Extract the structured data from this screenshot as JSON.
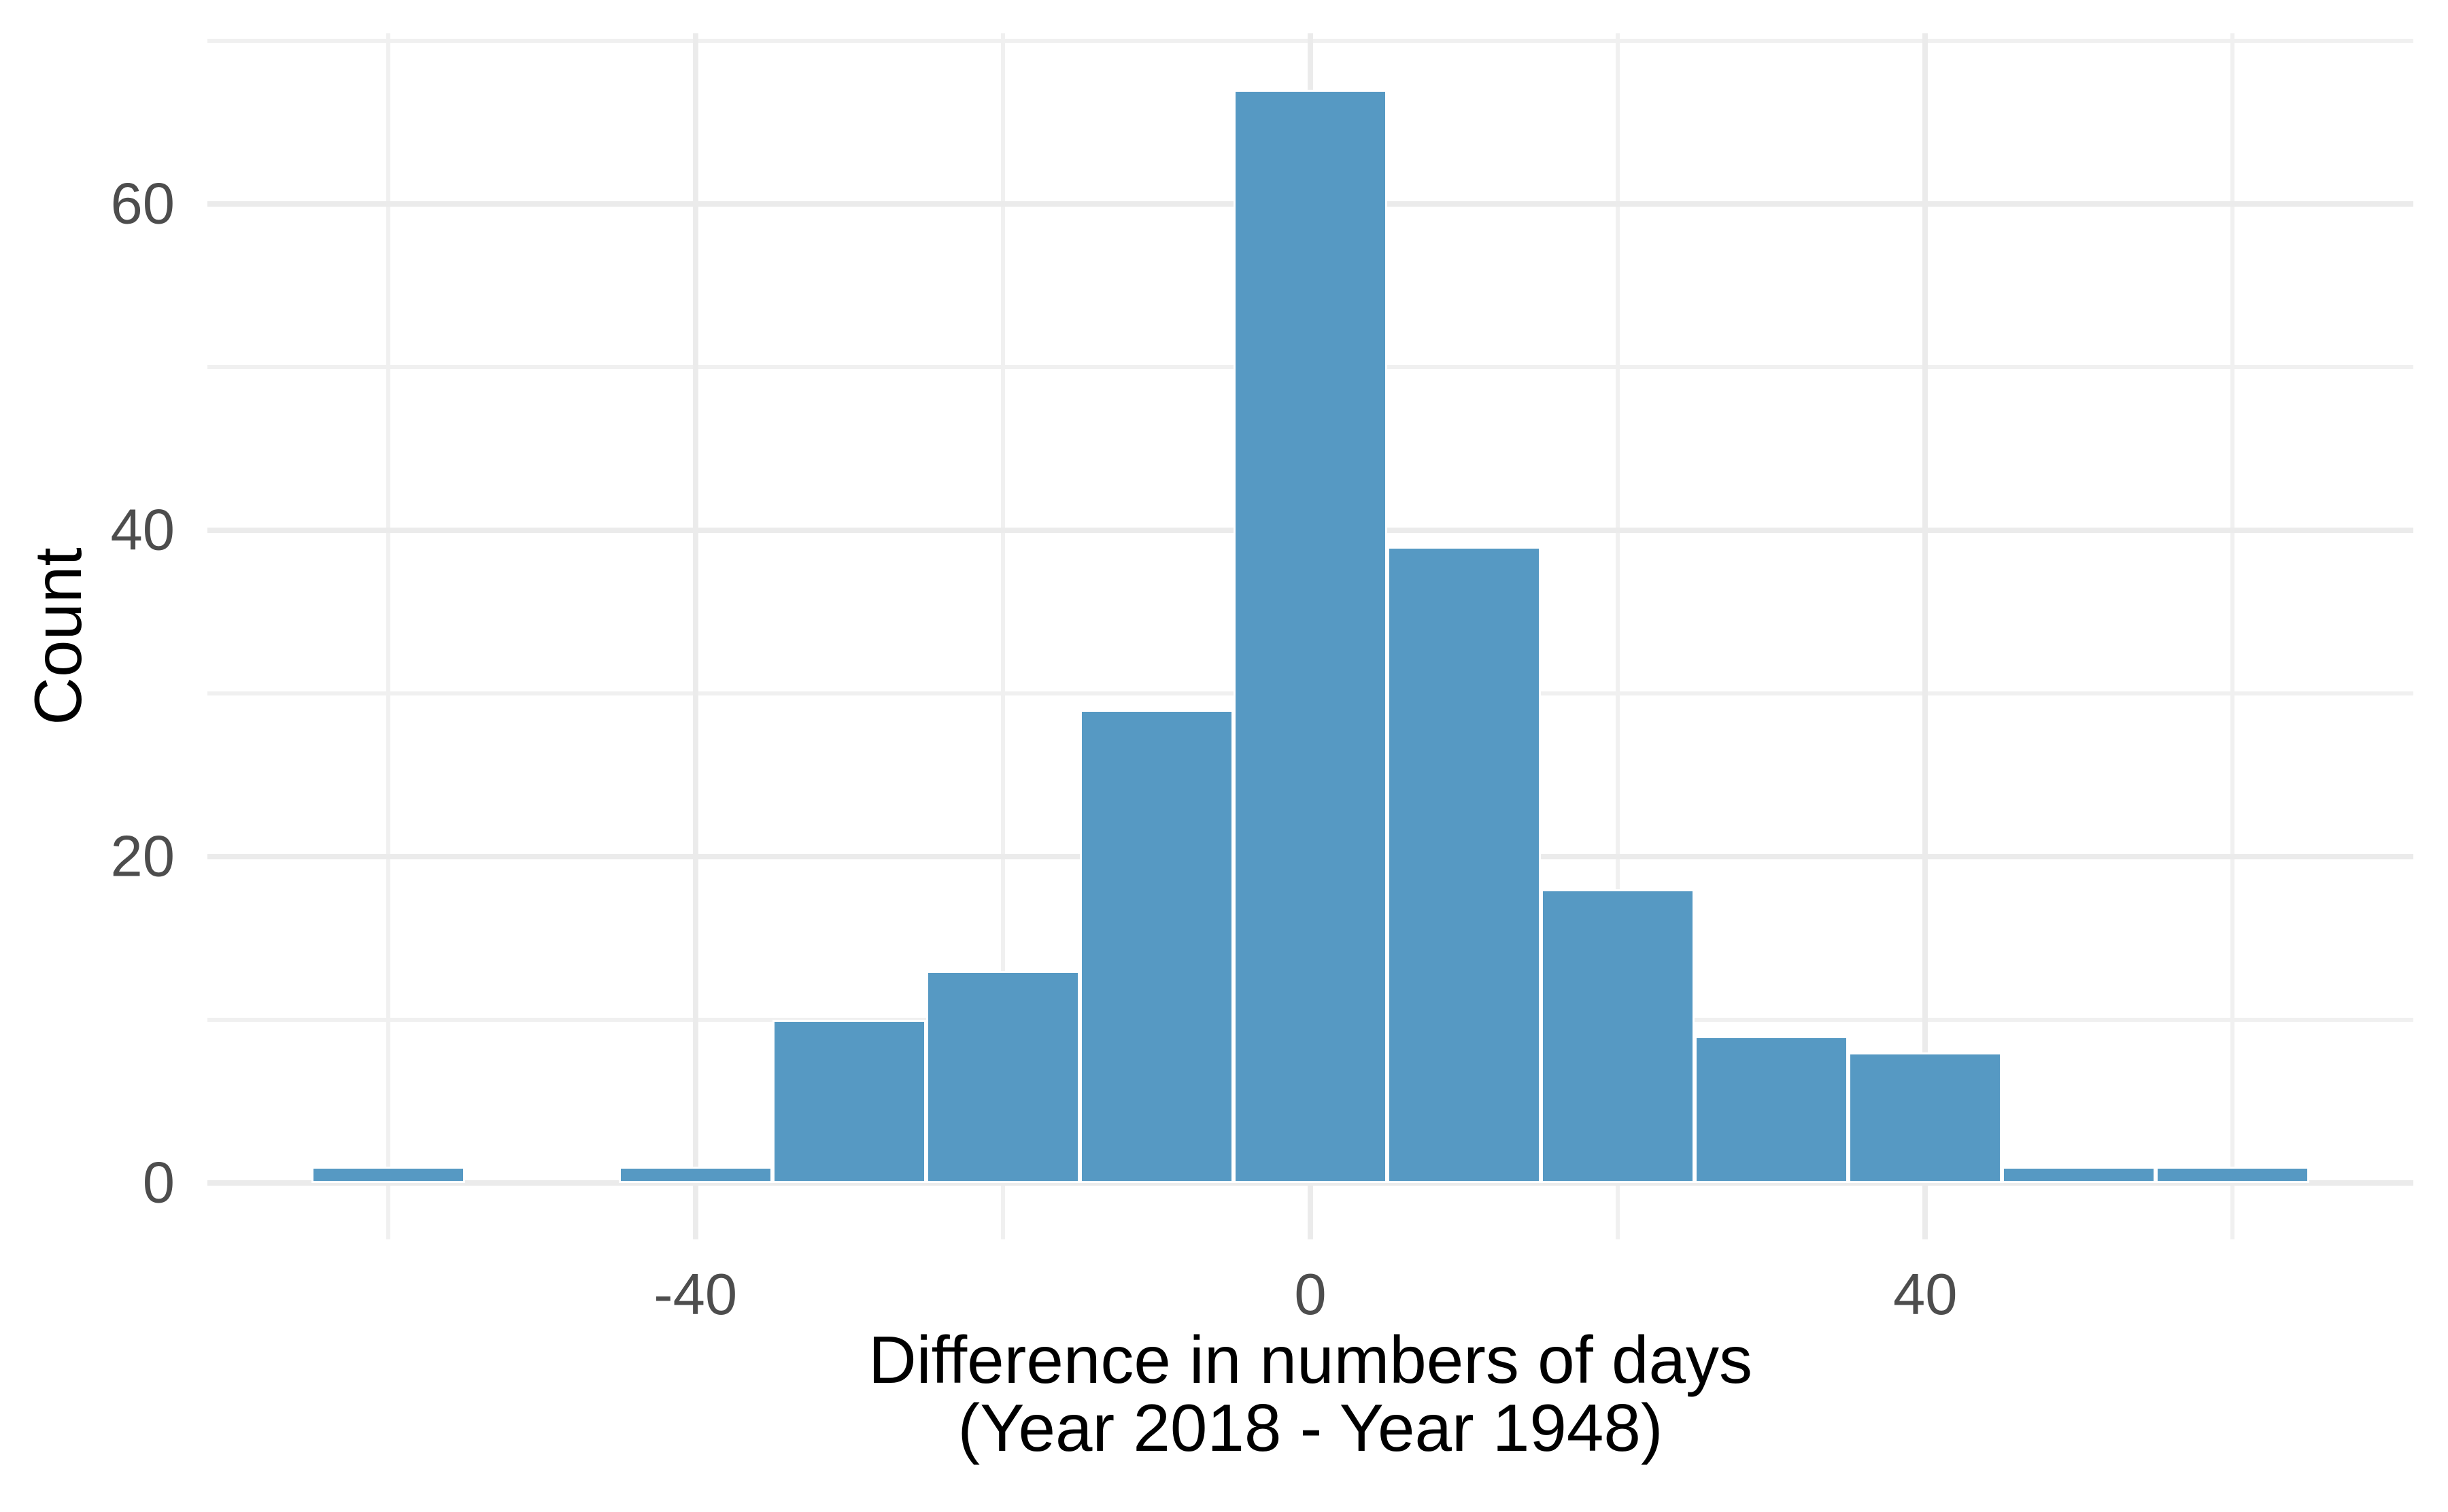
{
  "chart_data": {
    "type": "bar",
    "subtype": "histogram",
    "title": "",
    "xlabel_line1": "Difference in numbers of days",
    "xlabel_line2": "(Year 2018 - Year 1948)",
    "ylabel": "Count",
    "bin_width": 10,
    "bins": [
      {
        "x0": -65,
        "x1": -55,
        "count": 1
      },
      {
        "x0": -55,
        "x1": -45,
        "count": 0
      },
      {
        "x0": -45,
        "x1": -35,
        "count": 1
      },
      {
        "x0": -35,
        "x1": -25,
        "count": 10
      },
      {
        "x0": -25,
        "x1": -15,
        "count": 13
      },
      {
        "x0": -15,
        "x1": -5,
        "count": 29
      },
      {
        "x0": -5,
        "x1": 5,
        "count": 67
      },
      {
        "x0": 5,
        "x1": 15,
        "count": 39
      },
      {
        "x0": 15,
        "x1": 25,
        "count": 18
      },
      {
        "x0": 25,
        "x1": 35,
        "count": 9
      },
      {
        "x0": 35,
        "x1": 45,
        "count": 8
      },
      {
        "x0": 45,
        "x1": 55,
        "count": 1
      },
      {
        "x0": 55,
        "x1": 65,
        "count": 1
      }
    ],
    "x_ticks": [
      {
        "value": -40,
        "label": "-40"
      },
      {
        "value": 0,
        "label": "0"
      },
      {
        "value": 40,
        "label": "40"
      }
    ],
    "y_ticks": [
      {
        "value": 0,
        "label": "0"
      },
      {
        "value": 20,
        "label": "20"
      },
      {
        "value": 40,
        "label": "40"
      },
      {
        "value": 60,
        "label": "60"
      }
    ],
    "x_minor_gridlines": [
      -60,
      -20,
      20,
      60
    ],
    "y_minor_gridlines": [
      10,
      30,
      50,
      70
    ],
    "xlim": [
      -71.75,
      71.75
    ],
    "ylim": [
      -3.46,
      70.46
    ],
    "grid": "on",
    "legend_position": "none",
    "colors": {
      "bar_fill": "#5699C3",
      "bar_stroke": "#FFFFFF",
      "grid_major": "#EBEBEB",
      "grid_minor": "#F0F0F0",
      "tick_label": "#4D4D4D",
      "axis_title": "#000000",
      "background": "#FFFFFF"
    }
  }
}
